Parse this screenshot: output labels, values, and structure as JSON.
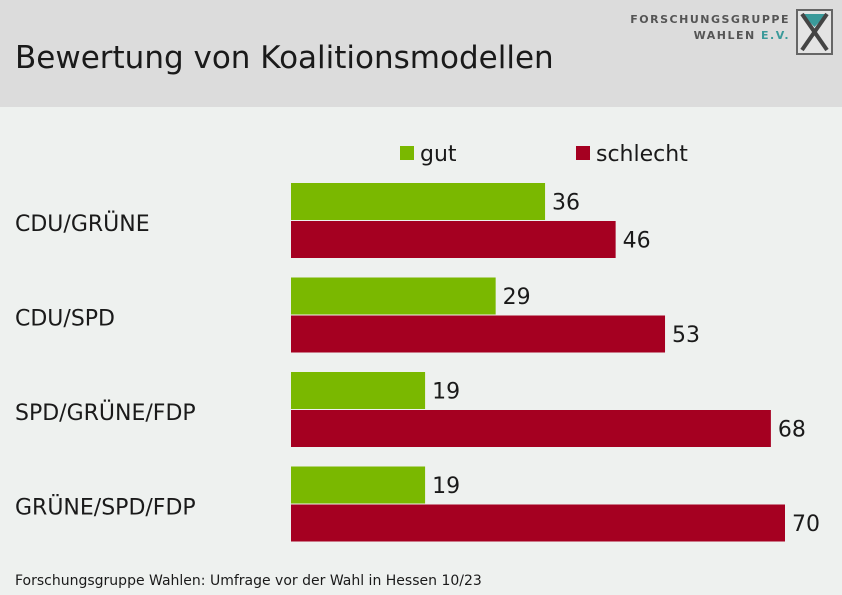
{
  "header": {
    "title": "Bewertung von Koalitionsmodellen",
    "logo_line1": "FORSCHUNGSGRUPPE",
    "logo_line2_main": "WAHLEN ",
    "logo_line2_accent": "E.V."
  },
  "footer": {
    "source": "Forschungsgruppe Wahlen: Umfrage vor der Wahl in Hessen 10/23"
  },
  "colors": {
    "gut": "#7ab800",
    "schlecht": "#a50021",
    "background": "#eef1ef",
    "header": "#dcdcdc"
  },
  "chart_data": {
    "type": "bar",
    "orientation": "horizontal",
    "categories": [
      "CDU/GRÜNE",
      "CDU/SPD",
      "SPD/GRÜNE/FDP",
      "GRÜNE/SPD/FDP"
    ],
    "series": [
      {
        "name": "gut",
        "values": [
          36,
          29,
          19,
          19
        ]
      },
      {
        "name": "schlecht",
        "values": [
          46,
          53,
          68,
          70
        ]
      }
    ],
    "xlim": [
      0,
      70
    ],
    "legend_position": "top",
    "grid": false,
    "data_labels": true
  }
}
